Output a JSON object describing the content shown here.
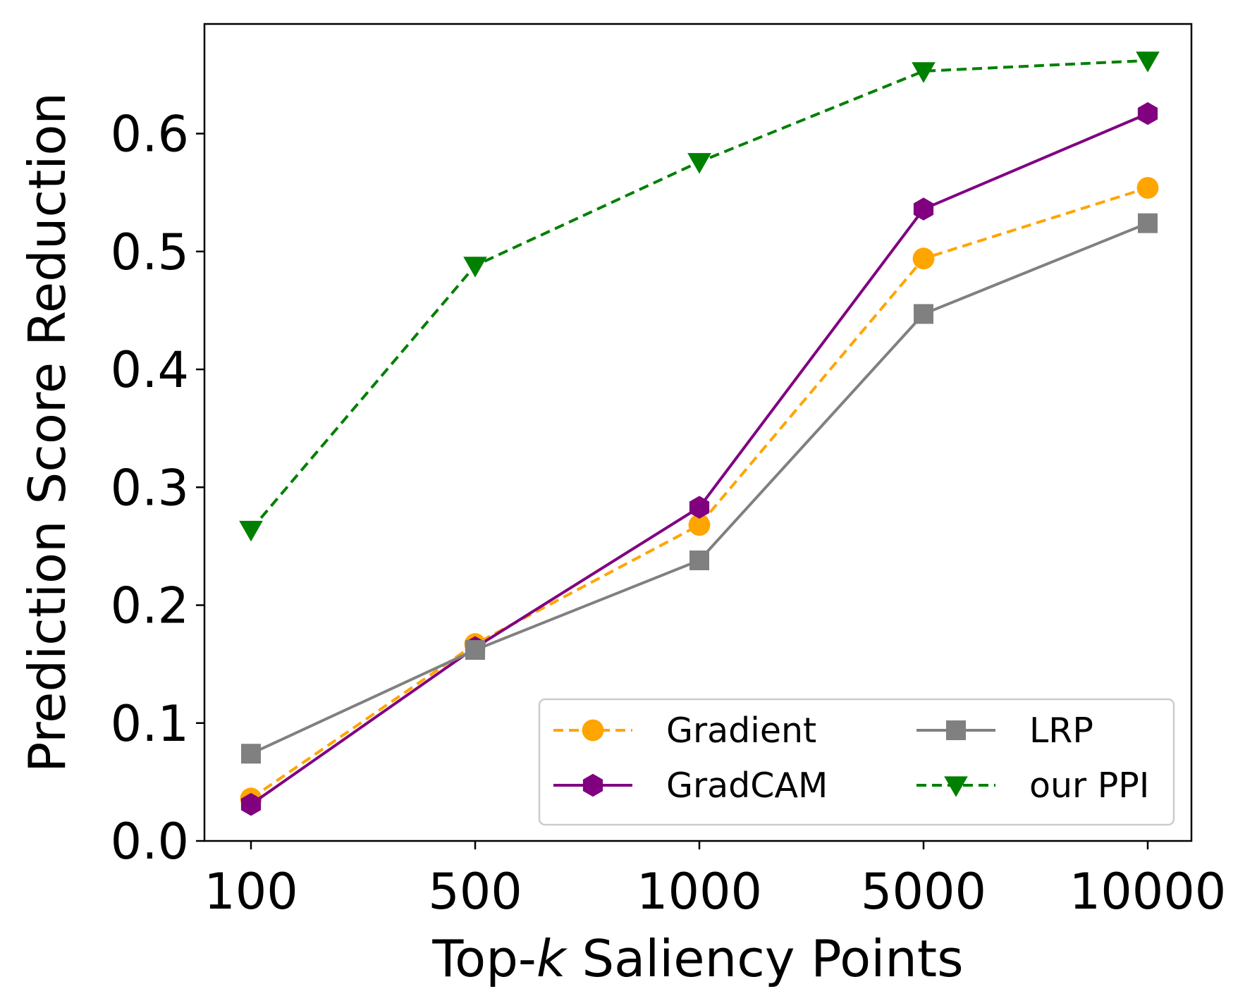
{
  "chart_data": {
    "type": "line",
    "categories": [
      "100",
      "500",
      "1000",
      "5000",
      "10000"
    ],
    "xlabel_prefix": "Top-",
    "xlabel_italic": "k",
    "xlabel_suffix": " Saliency Points",
    "ylabel": "Prediction Score Reduction",
    "ylim": [
      0,
      0.693
    ],
    "yticks": [
      0.0,
      0.1,
      0.2,
      0.3,
      0.4,
      0.5,
      0.6
    ],
    "ytick_labels": [
      "0.0",
      "0.1",
      "0.2",
      "0.3",
      "0.4",
      "0.5",
      "0.6"
    ],
    "legend_position": "lower-right",
    "series": [
      {
        "name": "Gradient",
        "values": [
          0.036,
          0.167,
          0.268,
          0.494,
          0.554
        ],
        "color": "#ffa500",
        "dashed": true,
        "marker": "circle"
      },
      {
        "name": "GradCAM",
        "values": [
          0.031,
          0.164,
          0.283,
          0.536,
          0.617
        ],
        "color": "#800080",
        "dashed": false,
        "marker": "hexagon"
      },
      {
        "name": "LRP",
        "values": [
          0.074,
          0.162,
          0.238,
          0.447,
          0.524
        ],
        "color": "#808080",
        "dashed": false,
        "marker": "square"
      },
      {
        "name": "our PPI",
        "values": [
          0.264,
          0.488,
          0.576,
          0.653,
          0.662
        ],
        "color": "#008000",
        "dashed": true,
        "marker": "triangle-down"
      }
    ]
  }
}
